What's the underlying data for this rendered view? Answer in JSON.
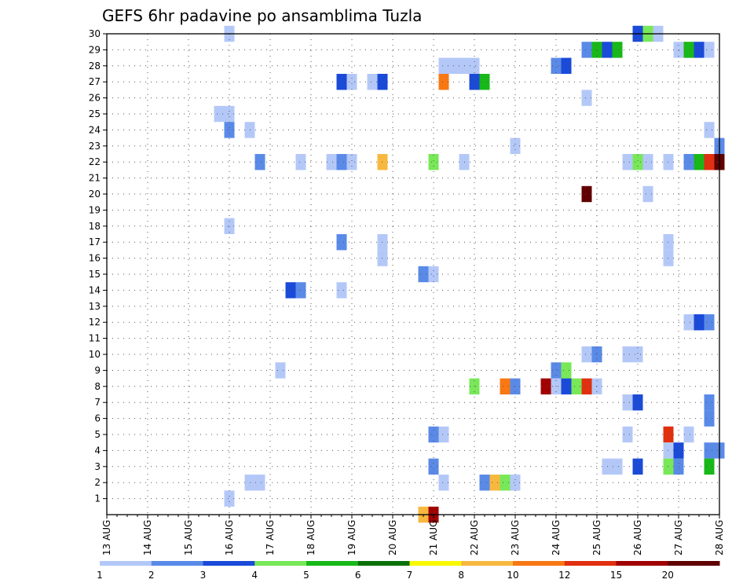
{
  "chart_data": {
    "type": "heatmap",
    "title": "GEFS 6hr padavine po ansamblima Tuzla",
    "x_ticks": [
      "13 AUG",
      "14 AUG",
      "15 AUG",
      "16 AUG",
      "17 AUG",
      "18 AUG",
      "19 AUG",
      "20 AUG",
      "21 AUG",
      "22 AUG",
      "23 AUG",
      "24 AUG",
      "25 AUG",
      "26 AUG",
      "27 AUG",
      "28 AUG"
    ],
    "x_range": [
      0,
      60
    ],
    "y_ticks": [
      "1",
      "2",
      "3",
      "4",
      "5",
      "6",
      "7",
      "8",
      "9",
      "10",
      "11",
      "12",
      "13",
      "14",
      "15",
      "16",
      "17",
      "18",
      "19",
      "20",
      "21",
      "22",
      "23",
      "24",
      "25",
      "26",
      "27",
      "28",
      "29",
      "30"
    ],
    "y_range": [
      0,
      30
    ],
    "grid": true,
    "colorbar": {
      "levels": [
        "1",
        "2",
        "3",
        "4",
        "5",
        "6",
        "7",
        "8",
        "10",
        "12",
        "15",
        "20"
      ],
      "colors": [
        "#b4c8f8",
        "#5a8ae8",
        "#1a4ad8",
        "#78e858",
        "#18b818",
        "#0a700a",
        "#f8f800",
        "#f8b840",
        "#f87814",
        "#e03010",
        "#a00000",
        "#600000"
      ]
    },
    "cells": [
      {
        "t": 12,
        "m": 30,
        "c": 0
      },
      {
        "t": 52,
        "m": 30,
        "c": 2
      },
      {
        "t": 53,
        "m": 30,
        "c": 3
      },
      {
        "t": 54,
        "m": 30,
        "c": 0
      },
      {
        "t": 47,
        "m": 29,
        "c": 1
      },
      {
        "t": 48,
        "m": 29,
        "c": 4
      },
      {
        "t": 49,
        "m": 29,
        "c": 2
      },
      {
        "t": 50,
        "m": 29,
        "c": 4
      },
      {
        "t": 56,
        "m": 29,
        "c": 0
      },
      {
        "t": 57,
        "m": 29,
        "c": 4
      },
      {
        "t": 58,
        "m": 29,
        "c": 2
      },
      {
        "t": 59,
        "m": 29,
        "c": 0
      },
      {
        "t": 33,
        "m": 28,
        "c": 0
      },
      {
        "t": 34,
        "m": 28,
        "c": 0
      },
      {
        "t": 35,
        "m": 28,
        "c": 0
      },
      {
        "t": 36,
        "m": 28,
        "c": 0
      },
      {
        "t": 44,
        "m": 28,
        "c": 1
      },
      {
        "t": 45,
        "m": 28,
        "c": 2
      },
      {
        "t": 23,
        "m": 27,
        "c": 2
      },
      {
        "t": 24,
        "m": 27,
        "c": 0
      },
      {
        "t": 26,
        "m": 27,
        "c": 0
      },
      {
        "t": 27,
        "m": 27,
        "c": 2
      },
      {
        "t": 33,
        "m": 27,
        "c": 8
      },
      {
        "t": 36,
        "m": 27,
        "c": 2
      },
      {
        "t": 37,
        "m": 27,
        "c": 4
      },
      {
        "t": 47,
        "m": 26,
        "c": 0
      },
      {
        "t": 11,
        "m": 25,
        "c": 0
      },
      {
        "t": 12,
        "m": 25,
        "c": 0
      },
      {
        "t": 12,
        "m": 24,
        "c": 1
      },
      {
        "t": 14,
        "m": 24,
        "c": 0
      },
      {
        "t": 59,
        "m": 24,
        "c": 0
      },
      {
        "t": 40,
        "m": 23,
        "c": 0
      },
      {
        "t": 60,
        "m": 23,
        "c": 1
      },
      {
        "t": 15,
        "m": 22,
        "c": 1
      },
      {
        "t": 19,
        "m": 22,
        "c": 0
      },
      {
        "t": 22,
        "m": 22,
        "c": 0
      },
      {
        "t": 23,
        "m": 22,
        "c": 1
      },
      {
        "t": 24,
        "m": 22,
        "c": 0
      },
      {
        "t": 27,
        "m": 22,
        "c": 7
      },
      {
        "t": 32,
        "m": 22,
        "c": 3
      },
      {
        "t": 35,
        "m": 22,
        "c": 0
      },
      {
        "t": 51,
        "m": 22,
        "c": 0
      },
      {
        "t": 52,
        "m": 22,
        "c": 3
      },
      {
        "t": 53,
        "m": 22,
        "c": 0
      },
      {
        "t": 55,
        "m": 22,
        "c": 0
      },
      {
        "t": 57,
        "m": 22,
        "c": 1
      },
      {
        "t": 58,
        "m": 22,
        "c": 4
      },
      {
        "t": 59,
        "m": 22,
        "c": 9
      },
      {
        "t": 60,
        "m": 22,
        "c": 11
      },
      {
        "t": 47,
        "m": 20,
        "c": 11
      },
      {
        "t": 53,
        "m": 20,
        "c": 0
      },
      {
        "t": 12,
        "m": 18,
        "c": 0
      },
      {
        "t": 23,
        "m": 17,
        "c": 1
      },
      {
        "t": 27,
        "m": 17,
        "c": 0
      },
      {
        "t": 55,
        "m": 17,
        "c": 0
      },
      {
        "t": 27,
        "m": 16,
        "c": 0
      },
      {
        "t": 55,
        "m": 16,
        "c": 0
      },
      {
        "t": 31,
        "m": 15,
        "c": 1
      },
      {
        "t": 32,
        "m": 15,
        "c": 0
      },
      {
        "t": 18,
        "m": 14,
        "c": 2
      },
      {
        "t": 19,
        "m": 14,
        "c": 1
      },
      {
        "t": 23,
        "m": 14,
        "c": 0
      },
      {
        "t": 57,
        "m": 12,
        "c": 0
      },
      {
        "t": 58,
        "m": 12,
        "c": 2
      },
      {
        "t": 59,
        "m": 12,
        "c": 1
      },
      {
        "t": 47,
        "m": 10,
        "c": 0
      },
      {
        "t": 48,
        "m": 10,
        "c": 1
      },
      {
        "t": 51,
        "m": 10,
        "c": 0
      },
      {
        "t": 52,
        "m": 10,
        "c": 0
      },
      {
        "t": 17,
        "m": 9,
        "c": 0
      },
      {
        "t": 44,
        "m": 9,
        "c": 1
      },
      {
        "t": 45,
        "m": 9,
        "c": 3
      },
      {
        "t": 36,
        "m": 8,
        "c": 3
      },
      {
        "t": 39,
        "m": 8,
        "c": 8
      },
      {
        "t": 40,
        "m": 8,
        "c": 1
      },
      {
        "t": 43,
        "m": 8,
        "c": 10
      },
      {
        "t": 44,
        "m": 8,
        "c": 0
      },
      {
        "t": 45,
        "m": 8,
        "c": 2
      },
      {
        "t": 46,
        "m": 8,
        "c": 3
      },
      {
        "t": 47,
        "m": 8,
        "c": 9
      },
      {
        "t": 48,
        "m": 8,
        "c": 0
      },
      {
        "t": 51,
        "m": 7,
        "c": 0
      },
      {
        "t": 52,
        "m": 7,
        "c": 2
      },
      {
        "t": 59,
        "m": 7,
        "c": 1
      },
      {
        "t": 59,
        "m": 6,
        "c": 1
      },
      {
        "t": 32,
        "m": 5,
        "c": 1
      },
      {
        "t": 33,
        "m": 5,
        "c": 0
      },
      {
        "t": 51,
        "m": 5,
        "c": 0
      },
      {
        "t": 55,
        "m": 5,
        "c": 9
      },
      {
        "t": 57,
        "m": 5,
        "c": 0
      },
      {
        "t": 55,
        "m": 4,
        "c": 0
      },
      {
        "t": 56,
        "m": 4,
        "c": 2
      },
      {
        "t": 59,
        "m": 4,
        "c": 1
      },
      {
        "t": 60,
        "m": 4,
        "c": 1
      },
      {
        "t": 32,
        "m": 3,
        "c": 1
      },
      {
        "t": 49,
        "m": 3,
        "c": 0
      },
      {
        "t": 50,
        "m": 3,
        "c": 0
      },
      {
        "t": 52,
        "m": 3,
        "c": 2
      },
      {
        "t": 55,
        "m": 3,
        "c": 3
      },
      {
        "t": 56,
        "m": 3,
        "c": 1
      },
      {
        "t": 59,
        "m": 3,
        "c": 4
      },
      {
        "t": 14,
        "m": 2,
        "c": 0
      },
      {
        "t": 15,
        "m": 2,
        "c": 0
      },
      {
        "t": 33,
        "m": 2,
        "c": 0
      },
      {
        "t": 37,
        "m": 2,
        "c": 1
      },
      {
        "t": 38,
        "m": 2,
        "c": 7
      },
      {
        "t": 39,
        "m": 2,
        "c": 3
      },
      {
        "t": 40,
        "m": 2,
        "c": 0
      },
      {
        "t": 12,
        "m": 1,
        "c": 0
      },
      {
        "t": 31,
        "m": 0,
        "c": 7
      },
      {
        "t": 32,
        "m": 0,
        "c": 10
      }
    ]
  }
}
